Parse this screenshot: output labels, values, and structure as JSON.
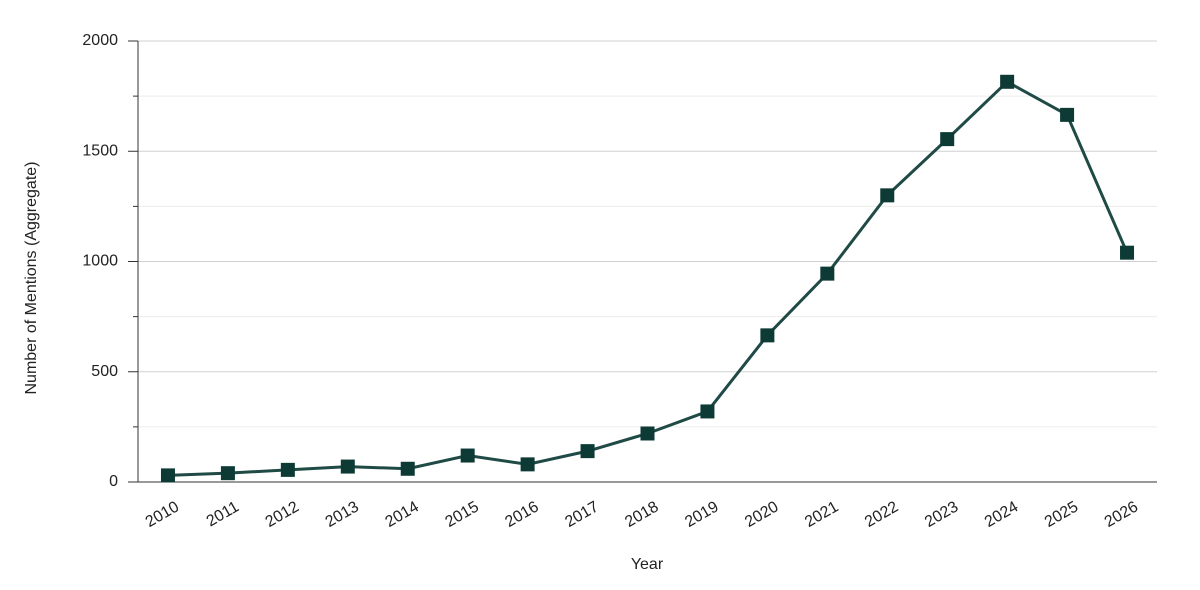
{
  "chart_data": {
    "type": "line",
    "x_label": "Year",
    "y_label": "Number of Mentions (Aggregate)",
    "categories": [
      "2010",
      "2011",
      "2012",
      "2013",
      "2014",
      "2015",
      "2016",
      "2017",
      "2018",
      "2019",
      "2020",
      "2021",
      "2022",
      "2023",
      "2024",
      "2025",
      "2026"
    ],
    "values": [
      30,
      40,
      55,
      70,
      60,
      120,
      80,
      140,
      220,
      320,
      665,
      945,
      1300,
      1555,
      1815,
      1665,
      1040
    ],
    "color": "#1f4a45",
    "marker_color": "#0e3a35",
    "ylim": [
      0,
      2000
    ],
    "yticks": [
      0,
      500,
      1000,
      1500,
      2000
    ],
    "minor_yticks": [
      250,
      750,
      1250,
      1750
    ],
    "grid": true
  }
}
